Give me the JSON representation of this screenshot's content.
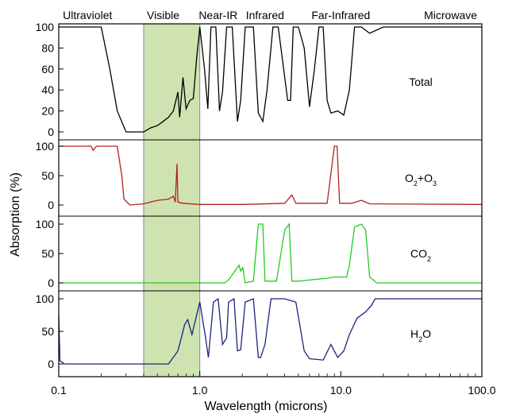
{
  "chart_data": {
    "type": "line",
    "xlabel": "Wavelength (microns)",
    "ylabel": "Absorption (%)",
    "xscale": "log",
    "xlim": [
      0.1,
      100.0
    ],
    "x_tick_labels": [
      "0.1",
      "1.0",
      "10.0",
      "100.0"
    ],
    "x_ticks": [
      0.1,
      1.0,
      10.0,
      100.0
    ],
    "region_labels": [
      "Ultraviolet",
      "Visible",
      "Near-IR",
      "Infrared",
      "Far-Infrared",
      "Microwave"
    ],
    "region_label_x": [
      0.16,
      0.55,
      1.35,
      2.9,
      10.0,
      60.0
    ],
    "visible_band": [
      0.4,
      1.0
    ],
    "visible_color": "#cfe3b0",
    "grid": false,
    "panels": [
      {
        "label_main": "Total",
        "label_parts": [
          {
            "t": "Total",
            "sub": false
          }
        ],
        "color": "#000000",
        "ylim": [
          0,
          100
        ],
        "y_ticks": [
          0,
          20,
          40,
          60,
          80,
          100
        ],
        "y_tick_labels": [
          "0",
          "20",
          "40",
          "60",
          "80",
          "100"
        ],
        "points": [
          [
            0.1,
            100
          ],
          [
            0.2,
            100
          ],
          [
            0.23,
            60
          ],
          [
            0.26,
            20
          ],
          [
            0.3,
            0
          ],
          [
            0.4,
            0
          ],
          [
            0.45,
            4
          ],
          [
            0.5,
            6
          ],
          [
            0.55,
            10
          ],
          [
            0.6,
            14
          ],
          [
            0.65,
            20
          ],
          [
            0.7,
            38
          ],
          [
            0.72,
            14
          ],
          [
            0.76,
            52
          ],
          [
            0.8,
            22
          ],
          [
            0.85,
            30
          ],
          [
            0.9,
            32
          ],
          [
            0.95,
            70
          ],
          [
            1.0,
            100
          ],
          [
            1.08,
            60
          ],
          [
            1.14,
            22
          ],
          [
            1.2,
            100
          ],
          [
            1.3,
            100
          ],
          [
            1.38,
            20
          ],
          [
            1.45,
            38
          ],
          [
            1.55,
            100
          ],
          [
            1.7,
            100
          ],
          [
            1.85,
            10
          ],
          [
            1.95,
            30
          ],
          [
            2.1,
            100
          ],
          [
            2.4,
            100
          ],
          [
            2.6,
            18
          ],
          [
            2.8,
            10
          ],
          [
            3.0,
            40
          ],
          [
            3.3,
            100
          ],
          [
            3.6,
            100
          ],
          [
            4.2,
            30
          ],
          [
            4.4,
            30
          ],
          [
            4.6,
            100
          ],
          [
            5.0,
            100
          ],
          [
            5.5,
            80
          ],
          [
            6.0,
            24
          ],
          [
            6.5,
            60
          ],
          [
            7.0,
            100
          ],
          [
            7.5,
            100
          ],
          [
            8.0,
            30
          ],
          [
            8.5,
            18
          ],
          [
            9.5,
            20
          ],
          [
            10.5,
            16
          ],
          [
            11.5,
            40
          ],
          [
            12.5,
            100
          ],
          [
            14,
            100
          ],
          [
            16,
            94
          ],
          [
            20,
            100
          ],
          [
            100,
            100
          ]
        ]
      },
      {
        "label_main": "O2+O3",
        "label_parts": [
          {
            "t": "O",
            "sub": false
          },
          {
            "t": "2",
            "sub": true
          },
          {
            "t": "+O",
            "sub": false
          },
          {
            "t": "3",
            "sub": true
          }
        ],
        "color": "#b22222",
        "ylim": [
          0,
          100
        ],
        "y_ticks": [
          0,
          50,
          100
        ],
        "y_tick_labels": [
          "0",
          "50",
          "100"
        ],
        "points": [
          [
            0.1,
            100
          ],
          [
            0.17,
            100
          ],
          [
            0.175,
            93
          ],
          [
            0.185,
            100
          ],
          [
            0.24,
            100
          ],
          [
            0.26,
            100
          ],
          [
            0.28,
            50
          ],
          [
            0.29,
            10
          ],
          [
            0.32,
            0
          ],
          [
            0.4,
            2
          ],
          [
            0.5,
            8
          ],
          [
            0.6,
            10
          ],
          [
            0.65,
            15
          ],
          [
            0.67,
            5
          ],
          [
            0.69,
            70
          ],
          [
            0.7,
            5
          ],
          [
            0.76,
            3
          ],
          [
            1.0,
            1
          ],
          [
            2.0,
            1
          ],
          [
            4.0,
            3
          ],
          [
            4.5,
            17
          ],
          [
            4.8,
            3
          ],
          [
            8.0,
            3
          ],
          [
            9.0,
            100
          ],
          [
            9.4,
            100
          ],
          [
            9.8,
            3
          ],
          [
            12.0,
            3
          ],
          [
            14.0,
            8
          ],
          [
            16.0,
            2
          ],
          [
            100,
            1
          ]
        ]
      },
      {
        "label_main": "CO2",
        "label_parts": [
          {
            "t": "CO",
            "sub": false
          },
          {
            "t": "2",
            "sub": true
          }
        ],
        "color": "#22cc22",
        "ylim": [
          0,
          100
        ],
        "y_ticks": [
          0,
          50,
          100
        ],
        "y_tick_labels": [
          "0",
          "50",
          "100"
        ],
        "points": [
          [
            0.1,
            0
          ],
          [
            1.5,
            0
          ],
          [
            1.6,
            5
          ],
          [
            1.9,
            30
          ],
          [
            1.95,
            20
          ],
          [
            2.02,
            26
          ],
          [
            2.1,
            0
          ],
          [
            2.4,
            3
          ],
          [
            2.6,
            100
          ],
          [
            2.8,
            100
          ],
          [
            2.9,
            3
          ],
          [
            3.5,
            3
          ],
          [
            4.0,
            90
          ],
          [
            4.3,
            100
          ],
          [
            4.5,
            3
          ],
          [
            5.0,
            3
          ],
          [
            6.0,
            5
          ],
          [
            8.0,
            8
          ],
          [
            9.0,
            10
          ],
          [
            10.0,
            10
          ],
          [
            11.0,
            10
          ],
          [
            11.5,
            30
          ],
          [
            12.5,
            95
          ],
          [
            14.0,
            100
          ],
          [
            15.0,
            90
          ],
          [
            16.0,
            10
          ],
          [
            18.0,
            0
          ],
          [
            100,
            0
          ]
        ]
      },
      {
        "label_main": "H2O",
        "label_parts": [
          {
            "t": "H",
            "sub": false
          },
          {
            "t": "2",
            "sub": true
          },
          {
            "t": "O",
            "sub": false
          }
        ],
        "color": "#1a237e",
        "ylim": [
          0,
          100
        ],
        "y_ticks": [
          0,
          50,
          100
        ],
        "y_tick_labels": [
          "0",
          "50",
          "100"
        ],
        "points": [
          [
            0.1,
            75
          ],
          [
            0.102,
            5
          ],
          [
            0.11,
            0
          ],
          [
            0.6,
            0
          ],
          [
            0.7,
            20
          ],
          [
            0.75,
            45
          ],
          [
            0.78,
            60
          ],
          [
            0.82,
            68
          ],
          [
            0.88,
            45
          ],
          [
            0.95,
            75
          ],
          [
            1.0,
            95
          ],
          [
            1.1,
            40
          ],
          [
            1.15,
            10
          ],
          [
            1.25,
            95
          ],
          [
            1.35,
            100
          ],
          [
            1.45,
            30
          ],
          [
            1.55,
            40
          ],
          [
            1.6,
            95
          ],
          [
            1.75,
            100
          ],
          [
            1.85,
            20
          ],
          [
            1.95,
            22
          ],
          [
            2.1,
            95
          ],
          [
            2.4,
            100
          ],
          [
            2.6,
            10
          ],
          [
            2.7,
            10
          ],
          [
            2.9,
            30
          ],
          [
            3.2,
            100
          ],
          [
            4.0,
            100
          ],
          [
            4.8,
            95
          ],
          [
            5.5,
            20
          ],
          [
            6.0,
            8
          ],
          [
            7.5,
            6
          ],
          [
            8.5,
            30
          ],
          [
            9.5,
            10
          ],
          [
            10.5,
            20
          ],
          [
            11.5,
            45
          ],
          [
            13.0,
            70
          ],
          [
            15.0,
            80
          ],
          [
            16.5,
            90
          ],
          [
            17.5,
            100
          ],
          [
            20,
            100
          ],
          [
            100,
            100
          ]
        ]
      }
    ]
  }
}
